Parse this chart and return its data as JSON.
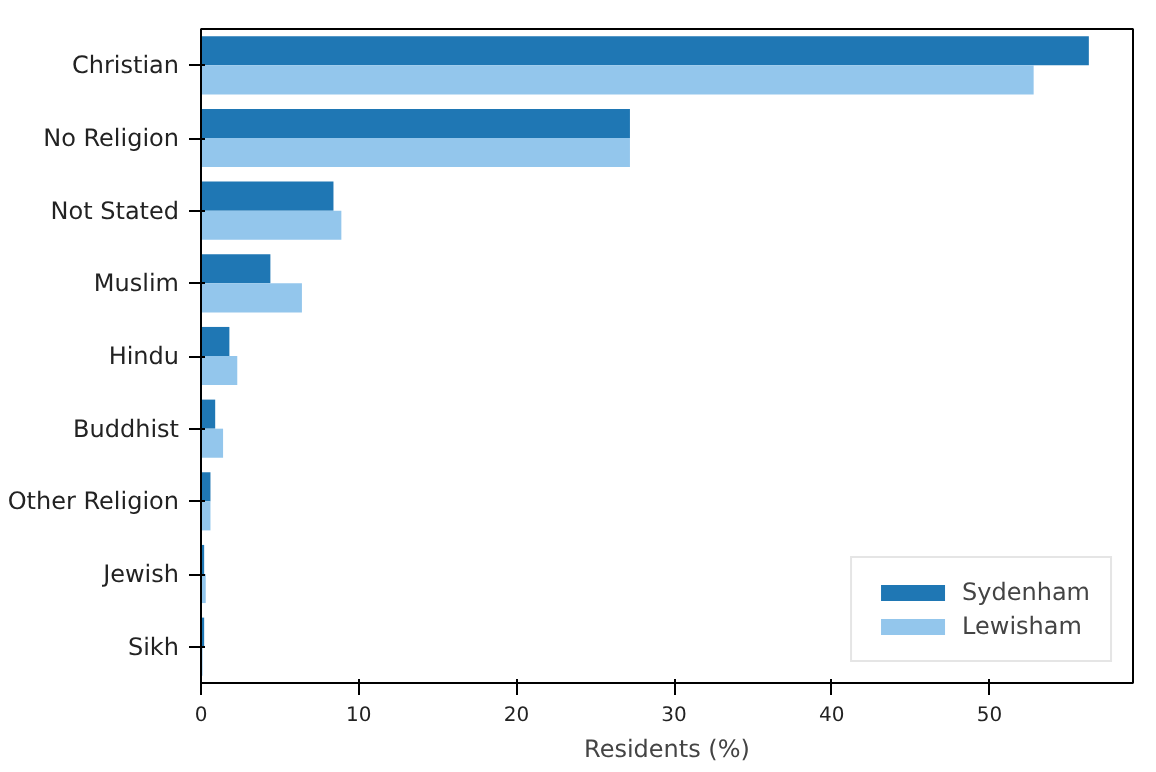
{
  "chart_data": {
    "type": "bar",
    "orientation": "horizontal",
    "xlabel": "Residents (%)",
    "categories": [
      "Christian",
      "No Religion",
      "Not Stated",
      "Muslim",
      "Hindu",
      "Buddhist",
      "Other Religion",
      "Jewish",
      "Sikh"
    ],
    "series": [
      {
        "name": "Sydenham",
        "color": "#1f77b4",
        "values": [
          56.3,
          27.2,
          8.4,
          4.4,
          1.8,
          0.9,
          0.6,
          0.2,
          0.2
        ]
      },
      {
        "name": "Lewisham",
        "color": "#93c6ec",
        "values": [
          52.8,
          27.2,
          8.9,
          6.4,
          2.3,
          1.4,
          0.6,
          0.3,
          0.1
        ]
      }
    ],
    "xlim": [
      0,
      59.1
    ],
    "xticks": [
      0,
      10,
      20,
      30,
      40,
      50
    ],
    "grid": false,
    "legend": "bottom right"
  }
}
